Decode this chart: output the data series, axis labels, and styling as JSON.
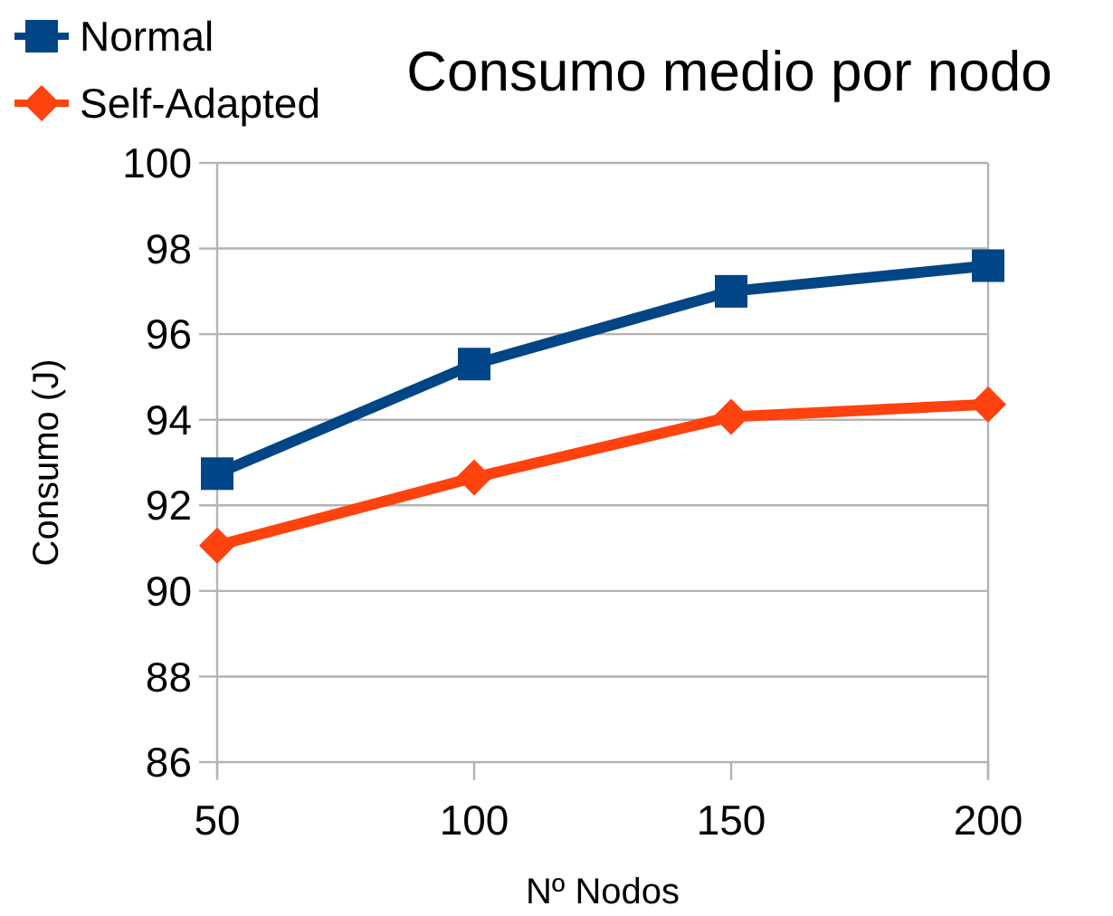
{
  "chart_data": {
    "type": "line",
    "title": "Consumo medio por nodo",
    "xlabel": "Nº Nodos",
    "ylabel": "Consumo (J)",
    "categories": [
      "50",
      "100",
      "150",
      "200"
    ],
    "series": [
      {
        "name": "Normal",
        "color": "#004586",
        "marker": "square",
        "values": [
          92.74,
          95.3,
          97.0,
          97.6
        ]
      },
      {
        "name": "Self-Adapted",
        "color": "#ff420e",
        "marker": "diamond",
        "values": [
          91.06,
          92.65,
          94.07,
          94.36
        ]
      }
    ],
    "ylim": [
      86,
      100
    ],
    "yticks": [
      86,
      88,
      90,
      92,
      94,
      96,
      98,
      100
    ],
    "grid": "y",
    "legend": "top left"
  }
}
